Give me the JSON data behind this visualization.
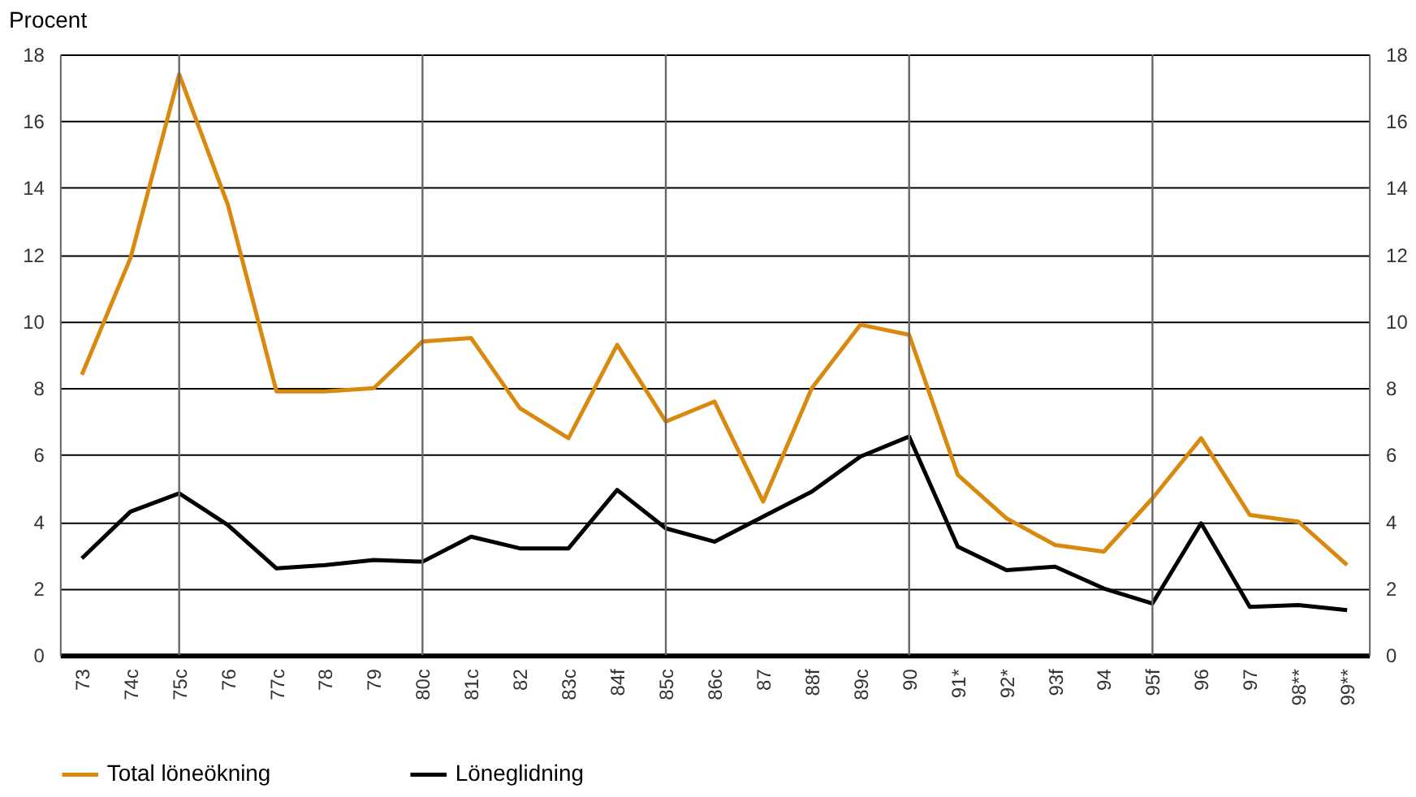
{
  "chart_data": {
    "type": "line",
    "ylabel": "Procent",
    "categories": [
      "73",
      "74c",
      "75c",
      "76",
      "77c",
      "78",
      "79",
      "80c",
      "81c",
      "82",
      "83c",
      "84f",
      "85c",
      "86c",
      "87",
      "88f",
      "89c",
      "90",
      "91*",
      "92*",
      "93f",
      "94",
      "95f",
      "96",
      "97",
      "98**",
      "99**"
    ],
    "series": [
      {
        "name": "Total löneökning",
        "color": "#d98a0e",
        "values": [
          8.4,
          11.9,
          17.4,
          13.5,
          7.9,
          7.9,
          8.0,
          9.4,
          9.5,
          7.4,
          6.5,
          9.3,
          7.0,
          7.6,
          4.6,
          8.0,
          9.9,
          9.6,
          5.4,
          4.1,
          3.3,
          3.1,
          4.7,
          6.5,
          4.2,
          4.0,
          2.7
        ]
      },
      {
        "name": "Löneglidning",
        "color": "#000000",
        "values": [
          2.9,
          4.3,
          4.85,
          3.9,
          2.6,
          2.7,
          2.85,
          2.8,
          3.55,
          3.2,
          3.2,
          4.95,
          3.8,
          3.4,
          4.15,
          4.9,
          5.95,
          6.55,
          3.25,
          2.55,
          2.65,
          2.0,
          1.55,
          3.95,
          1.45,
          1.5,
          1.35
        ]
      }
    ],
    "ylim": [
      0,
      18
    ],
    "yticks": [
      0,
      2,
      4,
      6,
      8,
      10,
      12,
      14,
      16,
      18
    ],
    "y2lim": [
      0,
      18
    ],
    "y2ticks": [
      0,
      2,
      4,
      6,
      8,
      10,
      12,
      14,
      16,
      18
    ],
    "grid": "y",
    "legend": "bottom",
    "marker": "none",
    "line_style": "solid",
    "ref_lines": [
      {
        "axis": "x",
        "value": "75c",
        "color": "#666666"
      },
      {
        "axis": "x",
        "value": "80c",
        "color": "#666666"
      },
      {
        "axis": "x",
        "value": "85c",
        "color": "#666666"
      },
      {
        "axis": "x",
        "value": "90",
        "color": "#666666"
      },
      {
        "axis": "x",
        "value": "95f",
        "color": "#666666"
      }
    ]
  }
}
